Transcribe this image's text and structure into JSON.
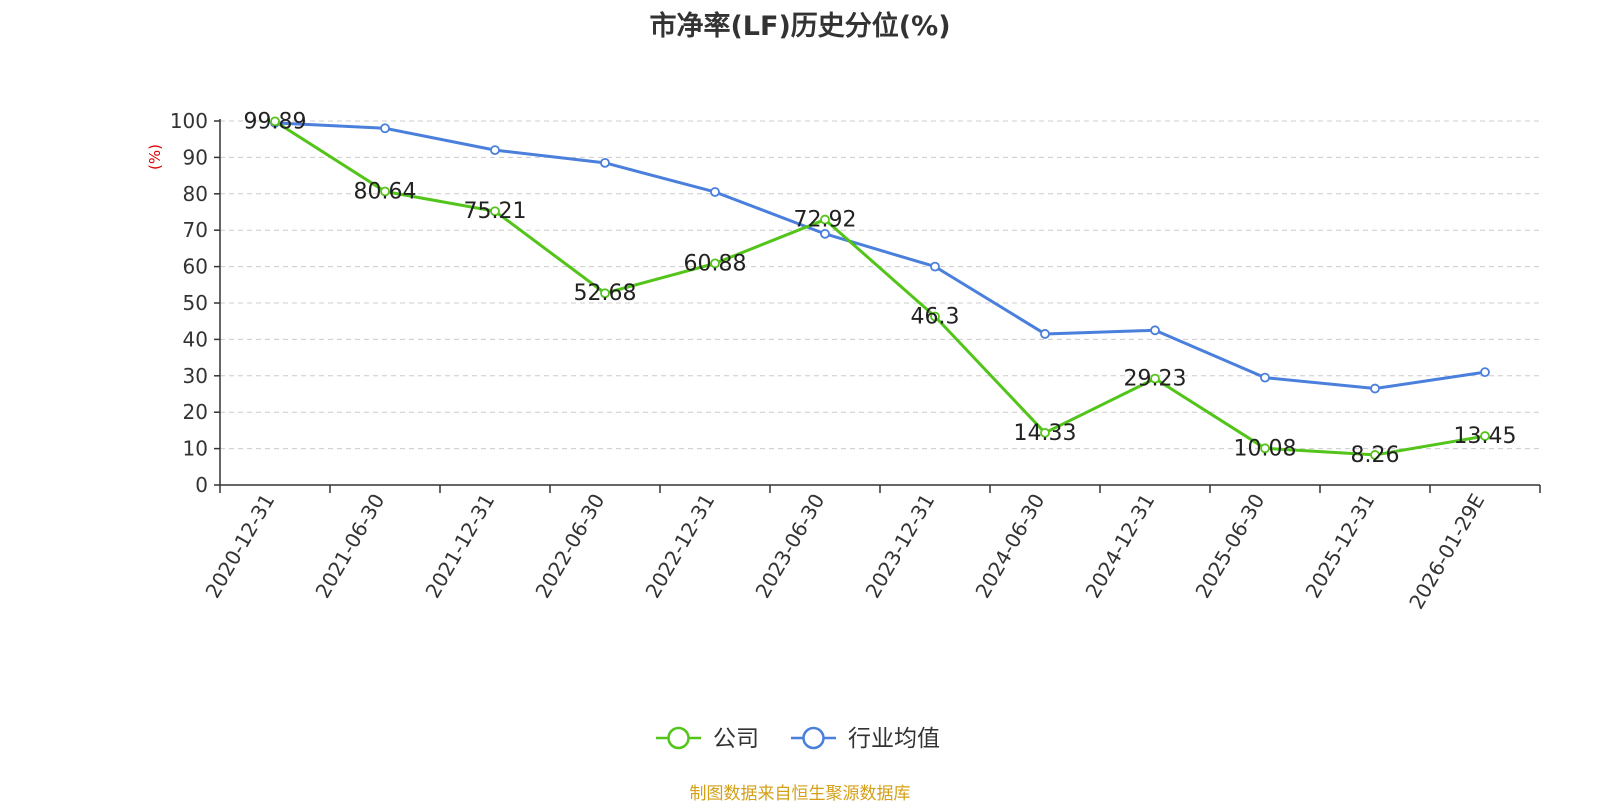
{
  "chart_data": {
    "type": "line",
    "title": "市净率(LF)历史分位(%)",
    "ylabel": "(%)",
    "xlabel": "",
    "ylim": [
      0,
      100
    ],
    "yticks": [
      0,
      10,
      20,
      30,
      40,
      50,
      60,
      70,
      80,
      90,
      100
    ],
    "categories": [
      "2020-12-31",
      "2021-06-30",
      "2021-12-31",
      "2022-06-30",
      "2022-12-31",
      "2023-06-30",
      "2023-12-31",
      "2024-06-30",
      "2024-12-31",
      "2025-06-30",
      "2025-12-31",
      "2026-01-29E"
    ],
    "series": [
      {
        "name": "公司",
        "color": "#52c41a",
        "values": [
          99.89,
          80.64,
          75.21,
          52.68,
          60.88,
          72.92,
          46.3,
          14.33,
          29.23,
          10.08,
          8.26,
          13.45
        ],
        "labels": [
          "99.89",
          "80.64",
          "75.21",
          "52.68",
          "60.88",
          "72.92",
          "46.3",
          "14.33",
          "29.23",
          "10.08",
          "8.26",
          "13.45"
        ]
      },
      {
        "name": "行业均值",
        "color": "#4a7fdc",
        "values": [
          99.5,
          98.0,
          92.0,
          88.5,
          80.5,
          69.0,
          60.0,
          41.5,
          42.5,
          29.5,
          26.5,
          31.0
        ]
      }
    ],
    "grid": "horizontal dashed",
    "legend_position": "bottom-center"
  },
  "source_note": "制图数据来自恒生聚源数据库"
}
